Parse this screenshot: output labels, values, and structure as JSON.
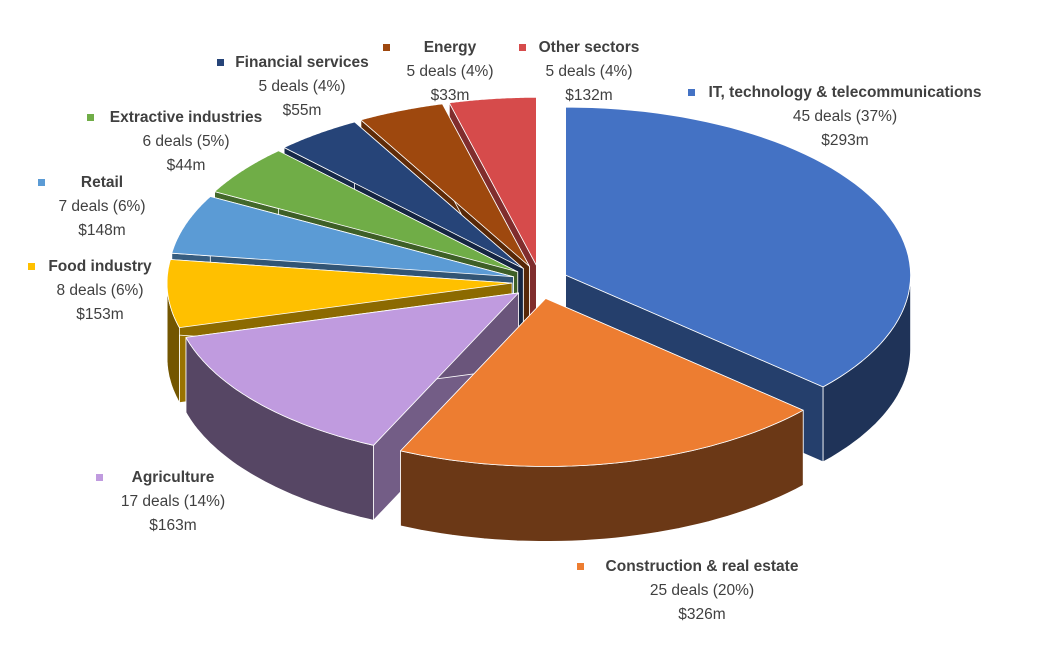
{
  "chart_data": {
    "type": "pie",
    "style": "3d-exploded",
    "title": "",
    "legend": "none (data labels with category markers)",
    "series": [
      {
        "name": "IT, technology & telecommunications",
        "deals": 45,
        "deals_label": "45 deals (37%)",
        "value_label": "$293m",
        "color": "#4472C4"
      },
      {
        "name": "Construction & real estate",
        "deals": 25,
        "deals_label": "25 deals (20%)",
        "value_label": "$326m",
        "color": "#ED7D31"
      },
      {
        "name": "Agriculture",
        "deals": 17,
        "deals_label": "17 deals (14%)",
        "value_label": "$163m",
        "color": "#C09BDF"
      },
      {
        "name": "Food industry",
        "deals": 8,
        "deals_label": "8 deals (6%)",
        "value_label": "$153m",
        "color": "#FFC000"
      },
      {
        "name": "Retail",
        "deals": 7,
        "deals_label": "7 deals (6%)",
        "value_label": "$148m",
        "color": "#5B9BD5"
      },
      {
        "name": "Extractive industries",
        "deals": 6,
        "deals_label": "6 deals (5%)",
        "value_label": "$44m",
        "color": "#70AD47"
      },
      {
        "name": "Financial services",
        "deals": 5,
        "deals_label": "5 deals (4%)",
        "value_label": "$55m",
        "color": "#264478"
      },
      {
        "name": "Energy",
        "deals": 5,
        "deals_label": "5 deals (4%)",
        "value_label": "$33m",
        "color": "#9E480E"
      },
      {
        "name": "Other sectors",
        "deals": 5,
        "deals_label": "5 deals (4%)",
        "value_label": "$132m",
        "color": "#D64B4B"
      }
    ]
  }
}
